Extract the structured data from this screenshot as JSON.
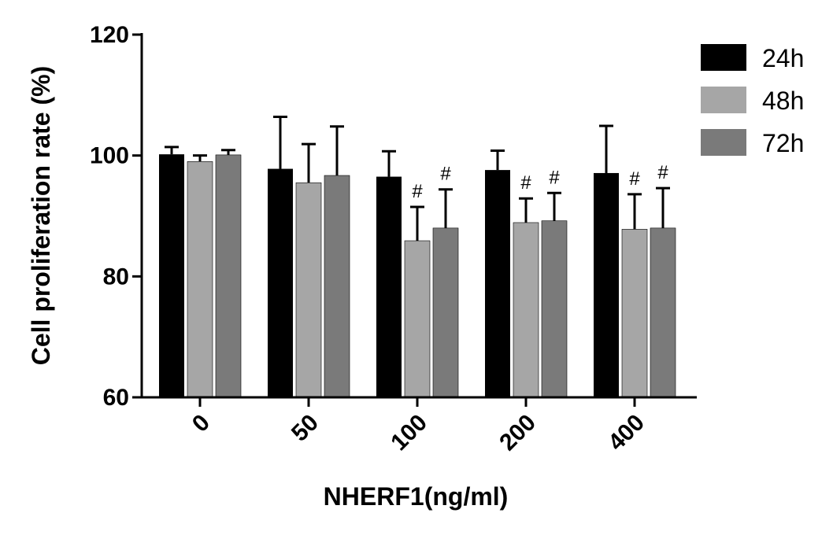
{
  "chart_data": {
    "type": "bar",
    "title": "",
    "xlabel": "NHERF1(ng/ml)",
    "ylabel": "Cell proliferation rate (%)",
    "ylim": [
      60,
      120
    ],
    "yticks": [
      60,
      80,
      100,
      120
    ],
    "categories": [
      "0",
      "50",
      "100",
      "200",
      "400"
    ],
    "grid": false,
    "legend_position": "top-right",
    "series": [
      {
        "name": "24h",
        "color": "#000000",
        "values": [
          100.2,
          97.8,
          96.5,
          97.6,
          97.1
        ],
        "errors": [
          1.2,
          8.6,
          4.2,
          3.2,
          7.8
        ],
        "annotations": [
          "",
          "",
          "",
          "",
          ""
        ]
      },
      {
        "name": "48h",
        "color": "#a6a6a6",
        "values": [
          99.0,
          95.5,
          85.9,
          88.9,
          87.8
        ],
        "errors": [
          1.0,
          6.4,
          5.6,
          4.0,
          5.8
        ],
        "annotations": [
          "",
          "",
          "#",
          "#",
          "#"
        ]
      },
      {
        "name": "72h",
        "color": "#7a7a7a",
        "values": [
          100.1,
          96.7,
          88.0,
          89.2,
          88.0
        ],
        "errors": [
          0.8,
          8.1,
          6.4,
          4.6,
          6.6
        ],
        "annotations": [
          "",
          "",
          "#",
          "#",
          "#"
        ]
      }
    ]
  }
}
